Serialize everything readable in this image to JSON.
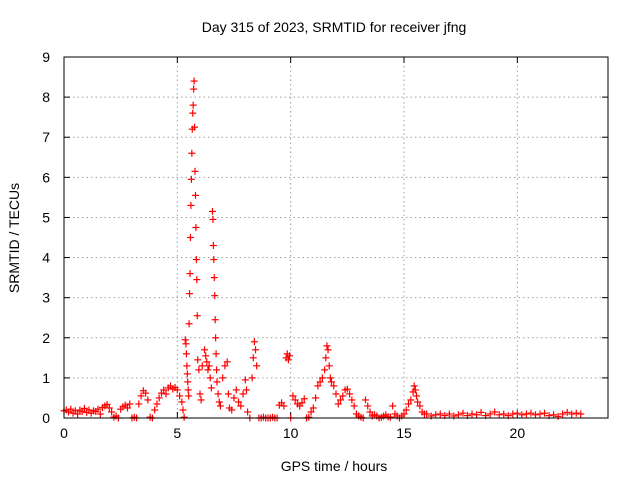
{
  "chart_data": {
    "type": "scatter",
    "title": "Day 315 of 2023, SRMTID for receiver jfng",
    "xlabel": "GPS time / hours",
    "ylabel": "SRMTID / TECUs",
    "xlim": [
      0,
      24
    ],
    "ylim": [
      0,
      9
    ],
    "xticks": [
      "0",
      "5",
      "10",
      "15",
      "20"
    ],
    "xtick_values": [
      0,
      5,
      10,
      15,
      20
    ],
    "yticks": [
      "0",
      "1",
      "2",
      "3",
      "4",
      "5",
      "6",
      "7",
      "8",
      "9"
    ],
    "ytick_values": [
      0,
      1,
      2,
      3,
      4,
      5,
      6,
      7,
      8,
      9
    ],
    "grid": true,
    "marker": "plus",
    "color": "#ff0000",
    "series": [
      {
        "values": [
          [
            0.0,
            0.18
          ],
          [
            0.1,
            0.2
          ],
          [
            0.2,
            0.15
          ],
          [
            0.3,
            0.22
          ],
          [
            0.4,
            0.12
          ],
          [
            0.5,
            0.18
          ],
          [
            0.6,
            0.1
          ],
          [
            0.7,
            0.2
          ],
          [
            0.8,
            0.16
          ],
          [
            0.9,
            0.24
          ],
          [
            1.0,
            0.14
          ],
          [
            1.1,
            0.2
          ],
          [
            1.2,
            0.12
          ],
          [
            1.3,
            0.18
          ],
          [
            1.4,
            0.16
          ],
          [
            1.5,
            0.22
          ],
          [
            1.6,
            0.1
          ],
          [
            1.7,
            0.26
          ],
          [
            1.8,
            0.3
          ],
          [
            1.9,
            0.34
          ],
          [
            2.0,
            0.25
          ],
          [
            2.1,
            0.15
          ],
          [
            2.2,
            0.02
          ],
          [
            2.3,
            0.05
          ],
          [
            2.4,
            0.0
          ],
          [
            2.5,
            0.22
          ],
          [
            2.6,
            0.28
          ],
          [
            2.7,
            0.32
          ],
          [
            2.8,
            0.25
          ],
          [
            2.9,
            0.35
          ],
          [
            3.0,
            0.0
          ],
          [
            3.1,
            0.02
          ],
          [
            3.2,
            0.0
          ],
          [
            3.3,
            0.35
          ],
          [
            3.4,
            0.55
          ],
          [
            3.5,
            0.68
          ],
          [
            3.6,
            0.62
          ],
          [
            3.7,
            0.45
          ],
          [
            3.8,
            0.02
          ],
          [
            3.9,
            0.0
          ],
          [
            4.0,
            0.2
          ],
          [
            4.1,
            0.35
          ],
          [
            4.2,
            0.5
          ],
          [
            4.3,
            0.62
          ],
          [
            4.4,
            0.7
          ],
          [
            4.5,
            0.6
          ],
          [
            4.6,
            0.75
          ],
          [
            4.7,
            0.8
          ],
          [
            4.8,
            0.72
          ],
          [
            4.9,
            0.76
          ],
          [
            5.0,
            0.7
          ],
          [
            5.1,
            0.55
          ],
          [
            5.2,
            0.4
          ],
          [
            5.25,
            0.2
          ],
          [
            5.3,
            0.02
          ],
          [
            5.35,
            1.95
          ],
          [
            5.38,
            1.85
          ],
          [
            5.4,
            1.6
          ],
          [
            5.42,
            1.3
          ],
          [
            5.44,
            1.1
          ],
          [
            5.46,
            0.9
          ],
          [
            5.48,
            0.7
          ],
          [
            5.5,
            0.55
          ],
          [
            5.52,
            2.35
          ],
          [
            5.54,
            3.1
          ],
          [
            5.56,
            3.6
          ],
          [
            5.58,
            4.5
          ],
          [
            5.6,
            5.3
          ],
          [
            5.62,
            5.95
          ],
          [
            5.64,
            6.6
          ],
          [
            5.66,
            7.2
          ],
          [
            5.68,
            7.6
          ],
          [
            5.7,
            7.8
          ],
          [
            5.72,
            8.2
          ],
          [
            5.74,
            8.4
          ],
          [
            5.76,
            7.25
          ],
          [
            5.78,
            6.15
          ],
          [
            5.8,
            5.55
          ],
          [
            5.82,
            4.75
          ],
          [
            5.84,
            3.95
          ],
          [
            5.86,
            3.45
          ],
          [
            5.88,
            2.55
          ],
          [
            5.9,
            1.45
          ],
          [
            5.95,
            1.2
          ],
          [
            6.0,
            0.6
          ],
          [
            6.05,
            0.45
          ],
          [
            6.1,
            1.3
          ],
          [
            6.2,
            1.7
          ],
          [
            6.25,
            1.55
          ],
          [
            6.3,
            1.4
          ],
          [
            6.35,
            1.2
          ],
          [
            6.4,
            1.3
          ],
          [
            6.45,
            1.0
          ],
          [
            6.5,
            0.75
          ],
          [
            6.55,
            5.15
          ],
          [
            6.57,
            4.95
          ],
          [
            6.59,
            4.3
          ],
          [
            6.61,
            3.95
          ],
          [
            6.63,
            3.5
          ],
          [
            6.65,
            3.05
          ],
          [
            6.67,
            2.45
          ],
          [
            6.69,
            2.0
          ],
          [
            6.71,
            1.6
          ],
          [
            6.73,
            1.2
          ],
          [
            6.75,
            0.9
          ],
          [
            6.8,
            0.6
          ],
          [
            6.85,
            0.4
          ],
          [
            6.9,
            0.3
          ],
          [
            7.0,
            1.0
          ],
          [
            7.1,
            1.3
          ],
          [
            7.2,
            1.4
          ],
          [
            7.25,
            0.6
          ],
          [
            7.3,
            0.25
          ],
          [
            7.4,
            0.2
          ],
          [
            7.5,
            0.5
          ],
          [
            7.6,
            0.7
          ],
          [
            7.7,
            0.4
          ],
          [
            7.8,
            0.3
          ],
          [
            7.9,
            0.6
          ],
          [
            8.0,
            0.95
          ],
          [
            8.05,
            0.7
          ],
          [
            8.1,
            0.15
          ],
          [
            8.2,
            0.0
          ],
          [
            8.3,
            1.0
          ],
          [
            8.35,
            1.5
          ],
          [
            8.4,
            1.9
          ],
          [
            8.45,
            1.7
          ],
          [
            8.5,
            1.3
          ],
          [
            8.6,
            0.0
          ],
          [
            8.7,
            0.0
          ],
          [
            8.8,
            0.02
          ],
          [
            8.9,
            0.0
          ],
          [
            9.0,
            0.0
          ],
          [
            9.1,
            0.0
          ],
          [
            9.2,
            0.02
          ],
          [
            9.3,
            0.0
          ],
          [
            9.4,
            0.0
          ],
          [
            9.5,
            0.32
          ],
          [
            9.6,
            0.38
          ],
          [
            9.7,
            0.3
          ],
          [
            9.8,
            1.5
          ],
          [
            9.85,
            1.6
          ],
          [
            9.9,
            1.45
          ],
          [
            9.95,
            1.55
          ],
          [
            10.0,
            0.0
          ],
          [
            10.1,
            0.55
          ],
          [
            10.2,
            0.45
          ],
          [
            10.3,
            0.35
          ],
          [
            10.4,
            0.3
          ],
          [
            10.5,
            0.38
          ],
          [
            10.6,
            0.48
          ],
          [
            10.7,
            0.0
          ],
          [
            10.8,
            0.02
          ],
          [
            10.9,
            0.15
          ],
          [
            11.0,
            0.25
          ],
          [
            11.1,
            0.5
          ],
          [
            11.2,
            0.8
          ],
          [
            11.3,
            0.9
          ],
          [
            11.4,
            1.0
          ],
          [
            11.5,
            1.2
          ],
          [
            11.55,
            1.5
          ],
          [
            11.6,
            1.8
          ],
          [
            11.65,
            1.7
          ],
          [
            11.7,
            1.3
          ],
          [
            11.75,
            1.0
          ],
          [
            11.8,
            0.9
          ],
          [
            11.9,
            0.8
          ],
          [
            12.0,
            0.6
          ],
          [
            12.1,
            0.35
          ],
          [
            12.2,
            0.45
          ],
          [
            12.3,
            0.55
          ],
          [
            12.4,
            0.7
          ],
          [
            12.5,
            0.72
          ],
          [
            12.6,
            0.6
          ],
          [
            12.7,
            0.45
          ],
          [
            12.8,
            0.3
          ],
          [
            12.9,
            0.1
          ],
          [
            13.0,
            0.05
          ],
          [
            13.1,
            0.02
          ],
          [
            13.2,
            0.0
          ],
          [
            13.3,
            0.45
          ],
          [
            13.4,
            0.3
          ],
          [
            13.5,
            0.15
          ],
          [
            13.6,
            0.05
          ],
          [
            13.7,
            0.08
          ],
          [
            13.8,
            0.05
          ],
          [
            13.9,
            0.0
          ],
          [
            14.0,
            0.02
          ],
          [
            14.1,
            0.05
          ],
          [
            14.2,
            0.08
          ],
          [
            14.3,
            0.03
          ],
          [
            14.4,
            0.02
          ],
          [
            14.5,
            0.3
          ],
          [
            14.6,
            0.1
          ],
          [
            14.7,
            0.05
          ],
          [
            14.8,
            0.0
          ],
          [
            14.9,
            0.05
          ],
          [
            15.0,
            0.1
          ],
          [
            15.1,
            0.2
          ],
          [
            15.2,
            0.35
          ],
          [
            15.3,
            0.45
          ],
          [
            15.4,
            0.65
          ],
          [
            15.45,
            0.8
          ],
          [
            15.5,
            0.7
          ],
          [
            15.55,
            0.55
          ],
          [
            15.6,
            0.4
          ],
          [
            15.7,
            0.3
          ],
          [
            15.8,
            0.15
          ],
          [
            15.9,
            0.1
          ],
          [
            16.0,
            0.1
          ],
          [
            16.2,
            0.05
          ],
          [
            16.4,
            0.08
          ],
          [
            16.6,
            0.1
          ],
          [
            16.8,
            0.06
          ],
          [
            17.0,
            0.1
          ],
          [
            17.2,
            0.05
          ],
          [
            17.4,
            0.08
          ],
          [
            17.6,
            0.12
          ],
          [
            17.8,
            0.06
          ],
          [
            18.0,
            0.1
          ],
          [
            18.2,
            0.08
          ],
          [
            18.4,
            0.14
          ],
          [
            18.6,
            0.06
          ],
          [
            18.8,
            0.1
          ],
          [
            19.0,
            0.15
          ],
          [
            19.2,
            0.08
          ],
          [
            19.4,
            0.1
          ],
          [
            19.6,
            0.06
          ],
          [
            19.8,
            0.1
          ],
          [
            20.0,
            0.12
          ],
          [
            20.2,
            0.08
          ],
          [
            20.4,
            0.1
          ],
          [
            20.6,
            0.12
          ],
          [
            20.8,
            0.08
          ],
          [
            21.0,
            0.1
          ],
          [
            21.2,
            0.12
          ],
          [
            21.4,
            0.06
          ],
          [
            21.6,
            0.08
          ],
          [
            21.8,
            0.04
          ],
          [
            22.0,
            0.1
          ],
          [
            22.2,
            0.14
          ],
          [
            22.4,
            0.1
          ],
          [
            22.6,
            0.12
          ],
          [
            22.8,
            0.1
          ]
        ]
      }
    ]
  }
}
